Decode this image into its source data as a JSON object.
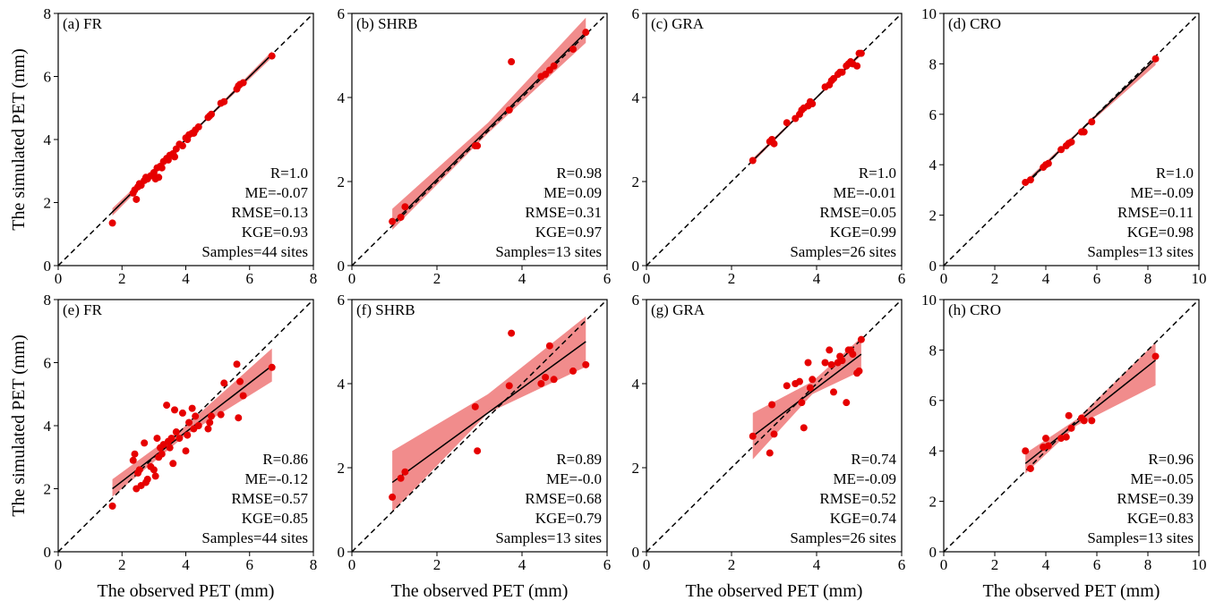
{
  "chart_data": [
    {
      "type": "scatter",
      "title": "(a) FR",
      "y_label": "The simulated PET (mm)",
      "x": [
        1.7,
        2.35,
        2.4,
        2.45,
        2.5,
        2.55,
        2.6,
        2.7,
        2.75,
        2.8,
        2.9,
        3.0,
        3.05,
        3.1,
        3.15,
        3.2,
        3.25,
        3.3,
        3.4,
        3.45,
        3.5,
        3.55,
        3.6,
        3.65,
        3.7,
        3.8,
        3.9,
        4.0,
        4.05,
        4.1,
        4.2,
        4.25,
        4.3,
        4.4,
        4.7,
        4.75,
        4.8,
        5.1,
        5.2,
        5.6,
        5.65,
        5.7,
        5.8,
        6.7
      ],
      "y": [
        1.35,
        2.3,
        2.4,
        2.1,
        2.5,
        2.6,
        2.55,
        2.7,
        2.8,
        2.75,
        2.85,
        2.95,
        2.75,
        3.1,
        2.8,
        3.15,
        3.1,
        3.3,
        3.4,
        3.35,
        3.5,
        3.5,
        3.55,
        3.45,
        3.7,
        3.85,
        3.8,
        4.05,
        4.0,
        4.15,
        4.2,
        4.2,
        4.3,
        4.4,
        4.7,
        4.75,
        4.8,
        5.15,
        5.2,
        5.6,
        5.7,
        5.75,
        5.8,
        6.65
      ],
      "fit": {
        "x": [
          1.7,
          6.7
        ],
        "y": [
          1.7,
          6.7
        ]
      },
      "band": {
        "x": [
          1.7,
          4.2,
          6.7
        ],
        "lower": [
          1.58,
          4.17,
          6.6
        ],
        "upper": [
          1.82,
          4.23,
          6.8
        ]
      },
      "annotations": [
        "R=1.0",
        "ME=-0.07",
        "RMSE=0.13",
        "KGE=0.93",
        "Samples=44 sites"
      ],
      "xlim": [
        0,
        8
      ],
      "ylim": [
        0,
        8
      ],
      "xticks": [
        0,
        2,
        4,
        6,
        8
      ],
      "yticks": [
        0,
        2,
        4,
        6,
        8
      ],
      "point_color": "#e60000",
      "band_color": "#f08080",
      "fit_color": "#000000"
    },
    {
      "type": "scatter",
      "title": "(b) SHRB",
      "x": [
        0.95,
        1.15,
        1.25,
        2.9,
        2.95,
        3.7,
        3.75,
        4.45,
        4.55,
        4.65,
        4.75,
        5.2,
        5.5
      ],
      "y": [
        1.05,
        1.15,
        1.4,
        2.85,
        2.85,
        3.7,
        4.85,
        4.5,
        4.55,
        4.65,
        4.75,
        5.15,
        5.55
      ],
      "fit": {
        "x": [
          0.95,
          5.5
        ],
        "y": [
          1.0,
          5.55
        ]
      },
      "band": {
        "x": [
          0.95,
          3.2,
          5.5
        ],
        "lower": [
          0.85,
          3.15,
          5.3
        ],
        "upper": [
          1.35,
          3.4,
          5.9
        ]
      },
      "annotations": [
        "R=0.98",
        "ME=0.09",
        "RMSE=0.31",
        "KGE=0.97",
        "Samples=13 sites"
      ],
      "xlim": [
        0,
        6
      ],
      "ylim": [
        0,
        6
      ],
      "xticks": [
        0,
        2,
        4,
        6
      ],
      "yticks": [
        0,
        2,
        4,
        6
      ],
      "point_color": "#e60000",
      "band_color": "#f08080",
      "fit_color": "#000000"
    },
    {
      "type": "scatter",
      "title": "(c) GRA",
      "x": [
        2.5,
        2.9,
        2.95,
        3.0,
        3.3,
        3.5,
        3.6,
        3.65,
        3.7,
        3.8,
        3.85,
        3.9,
        4.2,
        4.3,
        4.35,
        4.4,
        4.5,
        4.55,
        4.6,
        4.7,
        4.75,
        4.8,
        4.85,
        4.95,
        5.0,
        5.05
      ],
      "y": [
        2.5,
        2.95,
        3.0,
        2.9,
        3.4,
        3.5,
        3.6,
        3.7,
        3.75,
        3.8,
        3.9,
        3.85,
        4.25,
        4.3,
        4.4,
        4.45,
        4.55,
        4.6,
        4.6,
        4.75,
        4.8,
        4.85,
        4.8,
        4.75,
        5.05,
        5.05
      ],
      "fit": {
        "x": [
          2.5,
          5.05
        ],
        "y": [
          2.5,
          5.05
        ]
      },
      "band": {
        "x": [
          2.5,
          3.8,
          5.05
        ],
        "lower": [
          2.45,
          3.78,
          5.0
        ],
        "upper": [
          2.55,
          3.82,
          5.1
        ]
      },
      "annotations": [
        "R=1.0",
        "ME=-0.01",
        "RMSE=0.05",
        "KGE=0.99",
        "Samples=26 sites"
      ],
      "xlim": [
        0,
        6
      ],
      "ylim": [
        0,
        6
      ],
      "xticks": [
        0,
        2,
        4,
        6
      ],
      "yticks": [
        0,
        2,
        4,
        6
      ],
      "point_color": "#e60000",
      "band_color": "#f08080",
      "fit_color": "#000000"
    },
    {
      "type": "scatter",
      "title": "(d) CRO",
      "x": [
        3.2,
        3.4,
        3.9,
        4.0,
        4.1,
        4.6,
        4.8,
        4.9,
        5.0,
        5.4,
        5.5,
        5.8,
        8.3
      ],
      "y": [
        3.3,
        3.4,
        3.9,
        4.0,
        4.05,
        4.6,
        4.75,
        4.85,
        4.9,
        5.3,
        5.3,
        5.7,
        8.2
      ],
      "fit": {
        "x": [
          3.2,
          8.3
        ],
        "y": [
          3.25,
          8.2
        ]
      },
      "band": {
        "x": [
          3.2,
          5.5,
          8.3
        ],
        "lower": [
          3.15,
          5.45,
          7.95
        ],
        "upper": [
          3.35,
          5.55,
          8.25
        ]
      },
      "annotations": [
        "R=1.0",
        "ME=-0.09",
        "RMSE=0.11",
        "KGE=0.98",
        "Samples=13 sites"
      ],
      "xlim": [
        0,
        10
      ],
      "ylim": [
        0,
        10
      ],
      "xticks": [
        0,
        2,
        4,
        6,
        8,
        10
      ],
      "yticks": [
        0,
        2,
        4,
        6,
        8,
        10
      ],
      "point_color": "#e60000",
      "band_color": "#f08080",
      "fit_color": "#000000"
    },
    {
      "type": "scatter",
      "title": "(e) FR",
      "y_label": "The simulated PET (mm)",
      "x_label": "The observed PET (mm)",
      "x": [
        1.7,
        2.35,
        2.4,
        2.45,
        2.5,
        2.55,
        2.6,
        2.7,
        2.75,
        2.8,
        2.9,
        3.0,
        3.05,
        3.1,
        3.15,
        3.2,
        3.25,
        3.3,
        3.4,
        3.45,
        3.5,
        3.55,
        3.6,
        3.65,
        3.7,
        3.8,
        3.9,
        4.0,
        4.05,
        4.1,
        4.2,
        4.25,
        4.3,
        4.4,
        4.7,
        4.75,
        4.8,
        5.1,
        5.2,
        5.6,
        5.65,
        5.7,
        5.8,
        6.7
      ],
      "y": [
        1.45,
        2.9,
        3.1,
        2.0,
        2.5,
        2.6,
        2.1,
        3.45,
        2.2,
        2.3,
        2.7,
        2.6,
        2.4,
        3.6,
        3.0,
        3.3,
        3.1,
        3.4,
        4.65,
        3.5,
        3.3,
        3.6,
        2.8,
        4.5,
        3.8,
        3.6,
        4.4,
        3.2,
        3.7,
        4.1,
        4.55,
        3.9,
        4.3,
        4.0,
        3.9,
        4.1,
        4.3,
        4.35,
        5.35,
        5.95,
        4.25,
        5.4,
        4.95,
        5.85
      ],
      "fit": {
        "x": [
          1.7,
          6.7
        ],
        "y": [
          2.0,
          5.9
        ]
      },
      "band": {
        "x": [
          1.7,
          4.0,
          6.7
        ],
        "lower": [
          1.75,
          3.7,
          5.4
        ],
        "upper": [
          2.3,
          4.0,
          6.45
        ]
      },
      "annotations": [
        "R=0.86",
        "ME=-0.12",
        "RMSE=0.57",
        "KGE=0.85",
        "Samples=44 sites"
      ],
      "xlim": [
        0,
        8
      ],
      "ylim": [
        0,
        8
      ],
      "xticks": [
        0,
        2,
        4,
        6,
        8
      ],
      "yticks": [
        0,
        2,
        4,
        6,
        8
      ],
      "point_color": "#e60000",
      "band_color": "#f08080",
      "fit_color": "#000000"
    },
    {
      "type": "scatter",
      "title": "(f) SHRB",
      "x_label": "The observed PET (mm)",
      "x": [
        0.95,
        1.15,
        1.25,
        2.9,
        2.95,
        3.7,
        3.75,
        4.45,
        4.55,
        4.65,
        4.75,
        5.2,
        5.5
      ],
      "y": [
        1.3,
        1.75,
        1.9,
        3.45,
        2.4,
        3.95,
        5.2,
        4.0,
        4.15,
        4.9,
        4.1,
        4.3,
        4.45
      ],
      "fit": {
        "x": [
          0.95,
          5.5
        ],
        "y": [
          1.65,
          5.0
        ]
      },
      "band": {
        "x": [
          0.95,
          3.2,
          5.5
        ],
        "lower": [
          0.95,
          3.3,
          4.4
        ],
        "upper": [
          2.4,
          3.75,
          5.6
        ]
      },
      "annotations": [
        "R=0.89",
        "ME=-0.0",
        "RMSE=0.68",
        "KGE=0.79",
        "Samples=13 sites"
      ],
      "xlim": [
        0,
        6
      ],
      "ylim": [
        0,
        6
      ],
      "xticks": [
        0,
        2,
        4,
        6
      ],
      "yticks": [
        0,
        2,
        4,
        6
      ],
      "point_color": "#e60000",
      "band_color": "#f08080",
      "fit_color": "#000000"
    },
    {
      "type": "scatter",
      "title": "(g) GRA",
      "x_label": "The observed PET (mm)",
      "x": [
        2.5,
        2.9,
        2.95,
        3.0,
        3.3,
        3.5,
        3.6,
        3.65,
        3.7,
        3.8,
        3.85,
        3.9,
        4.2,
        4.3,
        4.35,
        4.4,
        4.5,
        4.55,
        4.6,
        4.7,
        4.75,
        4.8,
        4.85,
        4.95,
        5.0,
        5.05
      ],
      "y": [
        2.75,
        2.35,
        3.5,
        2.8,
        3.95,
        4.0,
        4.05,
        3.55,
        2.95,
        4.5,
        3.9,
        4.1,
        4.5,
        4.8,
        4.45,
        3.8,
        4.5,
        4.65,
        4.55,
        3.55,
        4.8,
        4.8,
        4.7,
        4.25,
        4.3,
        5.05
      ],
      "fit": {
        "x": [
          2.5,
          5.05
        ],
        "y": [
          2.75,
          4.7
        ]
      },
      "band": {
        "x": [
          2.5,
          3.9,
          5.05
        ],
        "lower": [
          2.2,
          3.75,
          4.3
        ],
        "upper": [
          3.3,
          4.05,
          5.1
        ]
      },
      "annotations": [
        "R=0.74",
        "ME=-0.09",
        "RMSE=0.52",
        "KGE=0.74",
        "Samples=26 sites"
      ],
      "xlim": [
        0,
        6
      ],
      "ylim": [
        0,
        6
      ],
      "xticks": [
        0,
        2,
        4,
        6
      ],
      "yticks": [
        0,
        2,
        4,
        6
      ],
      "point_color": "#e60000",
      "band_color": "#f08080",
      "fit_color": "#000000"
    },
    {
      "type": "scatter",
      "title": "(h) CRO",
      "x_label": "The observed PET (mm)",
      "x": [
        3.2,
        3.4,
        3.9,
        4.0,
        4.1,
        4.6,
        4.8,
        4.9,
        5.0,
        5.4,
        5.5,
        5.8,
        8.3
      ],
      "y": [
        4.0,
        3.3,
        4.15,
        4.5,
        4.2,
        4.5,
        4.55,
        5.4,
        4.9,
        5.3,
        5.2,
        5.2,
        7.75
      ],
      "fit": {
        "x": [
          3.2,
          8.3
        ],
        "y": [
          3.5,
          7.6
        ]
      },
      "band": {
        "x": [
          3.2,
          5.2,
          8.3
        ],
        "lower": [
          3.1,
          5.0,
          6.6
        ],
        "upper": [
          3.9,
          5.25,
          8.3
        ]
      },
      "annotations": [
        "R=0.96",
        "ME=-0.05",
        "RMSE=0.39",
        "KGE=0.83",
        "Samples=13 sites"
      ],
      "xlim": [
        0,
        10
      ],
      "ylim": [
        0,
        10
      ],
      "xticks": [
        0,
        2,
        4,
        6,
        8,
        10
      ],
      "yticks": [
        0,
        2,
        4,
        6,
        8,
        10
      ],
      "point_color": "#e60000",
      "band_color": "#f08080",
      "fit_color": "#000000"
    }
  ]
}
